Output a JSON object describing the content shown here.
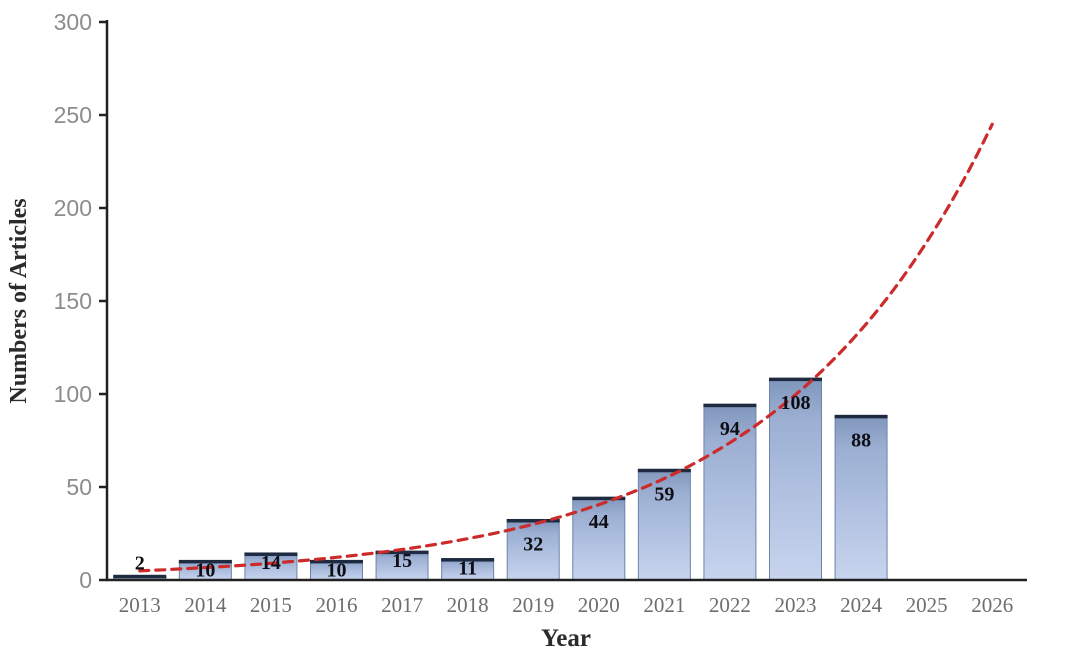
{
  "chart_data": {
    "type": "bar",
    "title": "",
    "xlabel": "Year",
    "ylabel": "Numbers of Articles",
    "categories": [
      "2013",
      "2014",
      "2015",
      "2016",
      "2017",
      "2018",
      "2019",
      "2020",
      "2021",
      "2022",
      "2023",
      "2024",
      "2025",
      "2026"
    ],
    "values": [
      2,
      10,
      14,
      10,
      15,
      11,
      32,
      44,
      59,
      94,
      108,
      88,
      null,
      null
    ],
    "bar_value_labels": [
      "2",
      "10",
      "14",
      "10",
      "15",
      "11",
      "32",
      "44",
      "59",
      "94",
      "108",
      "88"
    ],
    "ylim": [
      0,
      300
    ],
    "yticks": [
      0,
      50,
      100,
      150,
      200,
      250,
      300
    ],
    "grid": false,
    "legend": null,
    "trendline": {
      "type": "exponential",
      "style": "dashed",
      "x": [
        "2013",
        "2014",
        "2015",
        "2016",
        "2017",
        "2018",
        "2019",
        "2020",
        "2021",
        "2022",
        "2023",
        "2024",
        "2025",
        "2026"
      ],
      "values": [
        4.9,
        6.7,
        9.0,
        12.2,
        16.4,
        22.2,
        30.0,
        40.5,
        54.6,
        73.8,
        99.6,
        134.5,
        181.6,
        245.0
      ]
    }
  },
  "colors": {
    "background": "#ffffff",
    "axis": "#212121",
    "y_tick_label": "#8c8c8c",
    "x_tick_label": "#6e6e6e",
    "value_label": "#0e0e14",
    "axis_title": "#2b2b2b",
    "bar_gradient_top": "#7f96bc",
    "bar_gradient_mid": "#a9bbdc",
    "bar_gradient_bottom": "#c8d4ee",
    "bar_cap": "#1e2a40",
    "bar_edge": "#6d83a8",
    "trendline": "#cc2b2b"
  }
}
